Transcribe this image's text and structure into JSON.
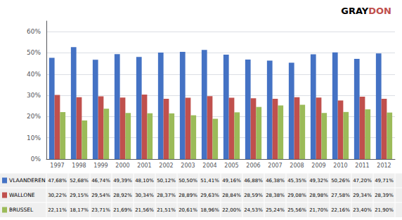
{
  "chart_data": {
    "type": "bar",
    "categories": [
      "1997",
      "1998",
      "1999",
      "2000",
      "2001",
      "2002",
      "2003",
      "2004",
      "2005",
      "2006",
      "2007",
      "2008",
      "2009",
      "2010",
      "2011",
      "2012"
    ],
    "series": [
      {
        "name": "VLAANDEREN",
        "color": "#4472C4",
        "values": [
          47.68,
          52.68,
          46.74,
          49.39,
          48.1,
          50.12,
          50.5,
          51.41,
          49.16,
          46.88,
          46.38,
          45.35,
          49.32,
          50.26,
          47.2,
          49.71
        ],
        "value_labels": [
          "47,68%",
          "52,68%",
          "46,74%",
          "49,39%",
          "48,10%",
          "50,12%",
          "50,50%",
          "51,41%",
          "49,16%",
          "46,88%",
          "46,38%",
          "45,35%",
          "49,32%",
          "50,26%",
          "47,20%",
          "49,71%"
        ]
      },
      {
        "name": "WALLONE",
        "color": "#C0504D",
        "values": [
          30.22,
          29.15,
          29.54,
          28.92,
          30.34,
          28.37,
          28.89,
          29.63,
          28.84,
          28.59,
          28.38,
          29.08,
          28.98,
          27.58,
          29.34,
          28.39
        ],
        "value_labels": [
          "30,22%",
          "29,15%",
          "29,54%",
          "28,92%",
          "30,34%",
          "28,37%",
          "28,89%",
          "29,63%",
          "28,84%",
          "28,59%",
          "28,38%",
          "29,08%",
          "28,98%",
          "27,58%",
          "29,34%",
          "28,39%"
        ]
      },
      {
        "name": "BRUSSEL",
        "color": "#9BBB59",
        "values": [
          22.11,
          18.17,
          23.71,
          21.69,
          21.56,
          21.51,
          20.61,
          18.96,
          22.0,
          24.53,
          25.24,
          25.56,
          21.7,
          22.16,
          23.4,
          21.9
        ],
        "value_labels": [
          "22,11%",
          "18,17%",
          "23,71%",
          "21,69%",
          "21,56%",
          "21,51%",
          "20,61%",
          "18,96%",
          "22,00%",
          "24,53%",
          "25,24%",
          "25,56%",
          "21,70%",
          "22,16%",
          "23,40%",
          "21,90%"
        ]
      }
    ],
    "ylim": [
      0,
      65
    ],
    "yticks": [
      {
        "value": 0,
        "label": "0%"
      },
      {
        "value": 10,
        "label": "10%"
      },
      {
        "value": 20,
        "label": "20%"
      },
      {
        "value": 30,
        "label": "30%"
      },
      {
        "value": 40,
        "label": "40%"
      },
      {
        "value": 50,
        "label": "50%"
      },
      {
        "value": 60,
        "label": "60%"
      }
    ],
    "grid": true,
    "annotations": [
      {
        "text": "GRAY",
        "color": "#000000"
      },
      {
        "text": "DON",
        "color": "#C0504D"
      }
    ]
  }
}
